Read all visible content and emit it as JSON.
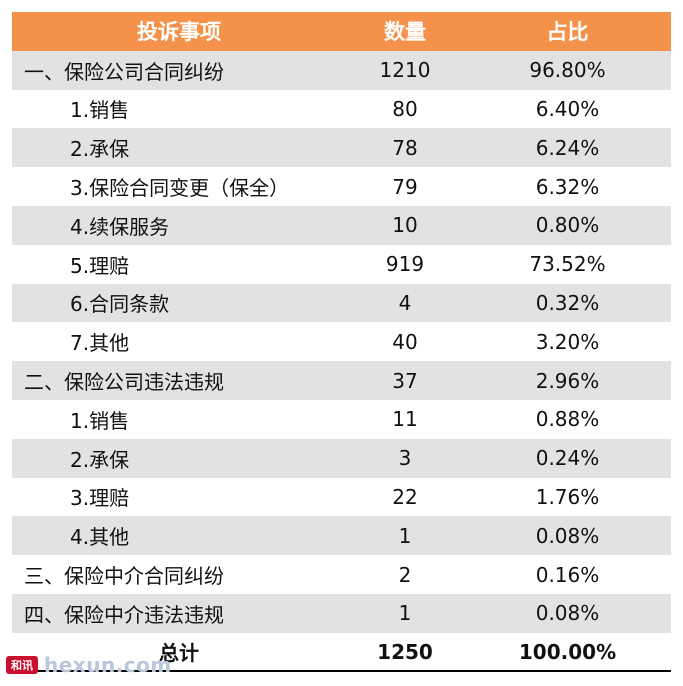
{
  "header": {
    "item": "投诉事项",
    "count": "数量",
    "share": "占比"
  },
  "rows": [
    {
      "item": "一、保险公司合同纠纷",
      "count": "1210",
      "share": "96.80%"
    },
    {
      "item": "1.销售",
      "count": "80",
      "share": "6.40%"
    },
    {
      "item": "2.承保",
      "count": "78",
      "share": "6.24%"
    },
    {
      "item": "3.保险合同变更（保全）",
      "count": "79",
      "share": "6.32%"
    },
    {
      "item": "4.续保服务",
      "count": "10",
      "share": "0.80%"
    },
    {
      "item": "5.理赔",
      "count": "919",
      "share": "73.52%"
    },
    {
      "item": "6.合同条款",
      "count": "4",
      "share": "0.32%"
    },
    {
      "item": "7.其他",
      "count": "40",
      "share": "3.20%"
    },
    {
      "item": "二、保险公司违法违规",
      "count": "37",
      "share": "2.96%"
    },
    {
      "item": "1.销售",
      "count": "11",
      "share": "0.88%"
    },
    {
      "item": "2.承保",
      "count": "3",
      "share": "0.24%"
    },
    {
      "item": "3.理赔",
      "count": "22",
      "share": "1.76%"
    },
    {
      "item": "4.其他",
      "count": "1",
      "share": "0.08%"
    },
    {
      "item": "三、保险中介合同纠纷",
      "count": "2",
      "share": "0.16%"
    },
    {
      "item": "四、保险中介违法违规",
      "count": "1",
      "share": "0.08%"
    }
  ],
  "total": {
    "item": "总计",
    "count": "1250",
    "share": "100.00%"
  },
  "watermark": {
    "logo": "和讯",
    "text": "hexun.com"
  },
  "colors": {
    "header_bg": "#f4924b",
    "shade_bg": "#e2e2e2"
  }
}
